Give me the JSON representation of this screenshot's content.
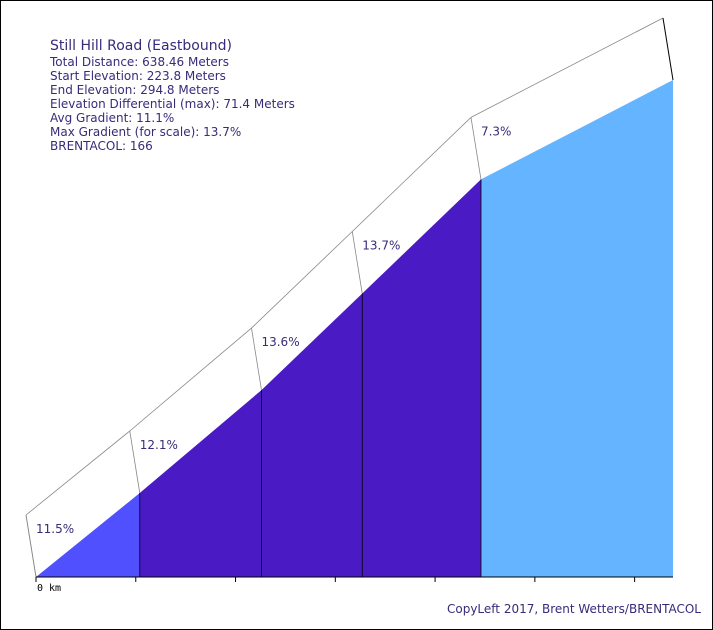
{
  "chart_data": {
    "type": "area",
    "title": "Still Hill Road (Eastbound)",
    "stats": [
      "Total Distance: 638.46 Meters",
      "Start Elevation: 223.8 Meters",
      "End Elevation: 294.8 Meters",
      "Elevation Differential (max): 71.4 Meters",
      "Avg Gradient: 11.1%",
      "Max Gradient (for scale): 13.7%",
      "BRENTACOL: 166"
    ],
    "x_unit": "m",
    "y_unit": "m",
    "x_tick_label": "0 km",
    "x_ticks": [
      0,
      100,
      200,
      300,
      400,
      500,
      600
    ],
    "xlim": [
      0,
      638.46
    ],
    "ylim": [
      223.8,
      294.8
    ],
    "segments": [
      {
        "start": 0,
        "end": 104,
        "gradient_label": "11.5%",
        "color": "#5050ff"
      },
      {
        "start": 104,
        "end": 226,
        "gradient_label": "12.1%",
        "color": "#4a1ac4"
      },
      {
        "start": 226,
        "end": 327,
        "gradient_label": "13.6%",
        "color": "#4a1ac4"
      },
      {
        "start": 327,
        "end": 446,
        "gradient_label": "13.7%",
        "color": "#4a1ac4"
      },
      {
        "start": 446,
        "end": 638.46,
        "gradient_label": "7.3%",
        "color": "#64b4ff"
      }
    ],
    "profile": [
      {
        "x": 0,
        "elev": 223.8
      },
      {
        "x": 104,
        "elev": 235.8
      },
      {
        "x": 226,
        "elev": 250.5
      },
      {
        "x": 327,
        "elev": 264.3
      },
      {
        "x": 446,
        "elev": 280.6
      },
      {
        "x": 638.46,
        "elev": 294.8
      }
    ],
    "colors": {
      "text": "#3a2a7a",
      "outline": "#888888",
      "divider": "#000000"
    }
  },
  "copyright": "CopyLeft 2017, Brent Wetters/BRENTACOL"
}
